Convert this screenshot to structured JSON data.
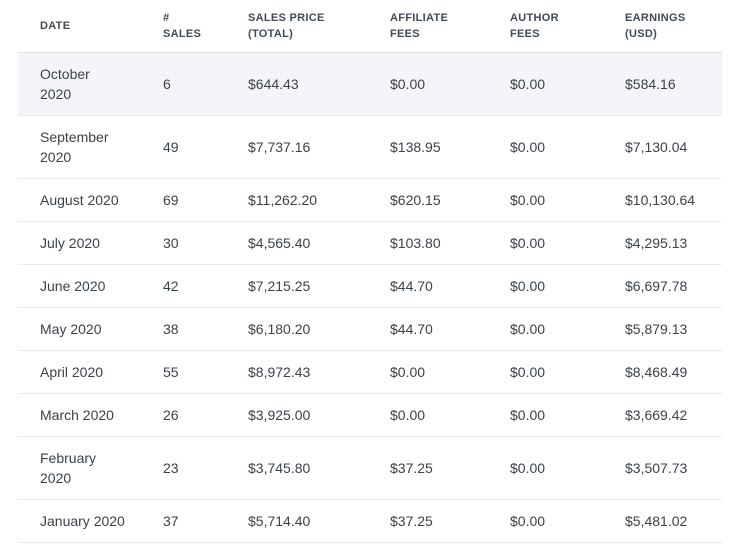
{
  "colors": {
    "page_background": "#ffffff",
    "highlight_row_bg": "#f5f5f9",
    "divider": "#e8ebee",
    "header_text": "#434a54",
    "body_text": "#3c424a"
  },
  "table": {
    "columns": [
      {
        "key": "date",
        "label": "DATE"
      },
      {
        "key": "sales",
        "label": "#\nSALES"
      },
      {
        "key": "sales_price",
        "label": "SALES PRICE\n(TOTAL)"
      },
      {
        "key": "affiliate_fees",
        "label": "AFFILIATE\nFEES"
      },
      {
        "key": "author_fees",
        "label": "AUTHOR\nFEES"
      },
      {
        "key": "earnings",
        "label": "EARNINGS\n(USD)"
      }
    ],
    "rows": [
      {
        "date": "October\n2020",
        "sales": "6",
        "sales_price": "$644.43",
        "affiliate_fees": "$0.00",
        "author_fees": "$0.00",
        "earnings": "$584.16",
        "highlighted": true
      },
      {
        "date": "September\n2020",
        "sales": "49",
        "sales_price": "$7,737.16",
        "affiliate_fees": "$138.95",
        "author_fees": "$0.00",
        "earnings": "$7,130.04",
        "highlighted": false
      },
      {
        "date": "August 2020",
        "sales": "69",
        "sales_price": "$11,262.20",
        "affiliate_fees": "$620.15",
        "author_fees": "$0.00",
        "earnings": "$10,130.64",
        "highlighted": false
      },
      {
        "date": "July 2020",
        "sales": "30",
        "sales_price": "$4,565.40",
        "affiliate_fees": "$103.80",
        "author_fees": "$0.00",
        "earnings": "$4,295.13",
        "highlighted": false
      },
      {
        "date": "June 2020",
        "sales": "42",
        "sales_price": "$7,215.25",
        "affiliate_fees": "$44.70",
        "author_fees": "$0.00",
        "earnings": "$6,697.78",
        "highlighted": false
      },
      {
        "date": "May 2020",
        "sales": "38",
        "sales_price": "$6,180.20",
        "affiliate_fees": "$44.70",
        "author_fees": "$0.00",
        "earnings": "$5,879.13",
        "highlighted": false
      },
      {
        "date": "April 2020",
        "sales": "55",
        "sales_price": "$8,972.43",
        "affiliate_fees": "$0.00",
        "author_fees": "$0.00",
        "earnings": "$8,468.49",
        "highlighted": false
      },
      {
        "date": "March 2020",
        "sales": "26",
        "sales_price": "$3,925.00",
        "affiliate_fees": "$0.00",
        "author_fees": "$0.00",
        "earnings": "$3,669.42",
        "highlighted": false
      },
      {
        "date": "February\n2020",
        "sales": "23",
        "sales_price": "$3,745.80",
        "affiliate_fees": "$37.25",
        "author_fees": "$0.00",
        "earnings": "$3,507.73",
        "highlighted": false
      },
      {
        "date": "January 2020",
        "sales": "37",
        "sales_price": "$5,714.40",
        "affiliate_fees": "$37.25",
        "author_fees": "$0.00",
        "earnings": "$5,481.02",
        "highlighted": false
      }
    ]
  }
}
